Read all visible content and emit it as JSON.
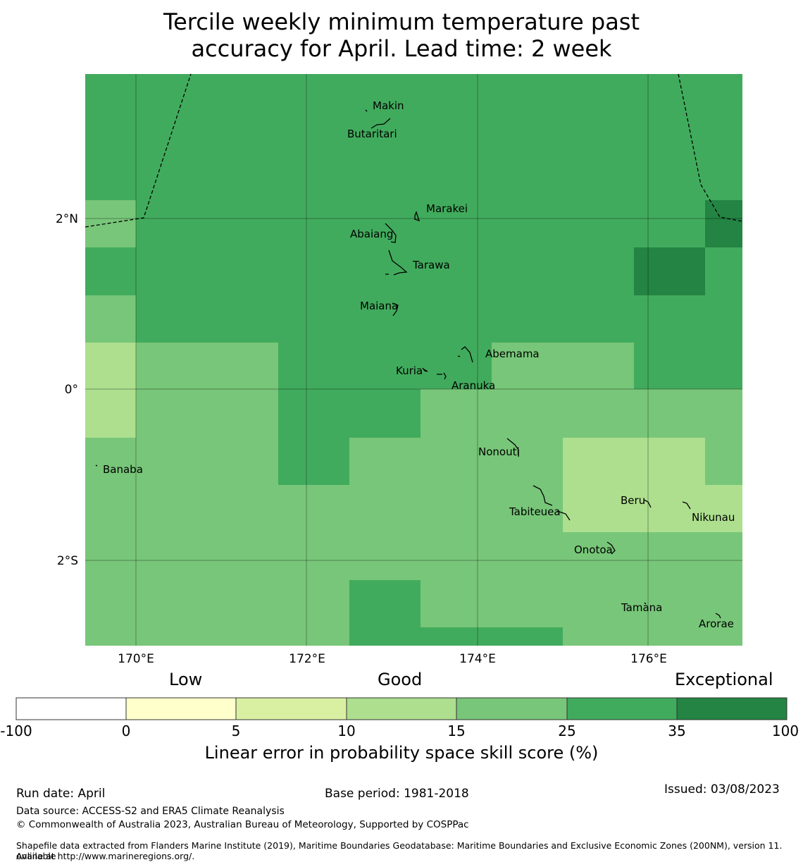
{
  "title_line1": "Tercile weekly minimum temperature past",
  "title_line2": "accuracy for April. Lead time: 2 week",
  "map": {
    "lon_range": [
      169.4,
      177.1
    ],
    "lat_range": [
      -3.0,
      3.7
    ],
    "x_ticks": [
      "170°E",
      "172°E",
      "174°E",
      "176°E"
    ],
    "y_ticks": [
      "2°N",
      "0°",
      "2°S"
    ],
    "colors": {
      "c10_15": "#addf8e",
      "c15_25": "#78c679",
      "c25_35": "#41ab5d",
      "c35_100": "#238443"
    },
    "places": [
      {
        "name": "Makin"
      },
      {
        "name": "Butaritari"
      },
      {
        "name": "Marakei"
      },
      {
        "name": "Abaiang"
      },
      {
        "name": "Tarawa"
      },
      {
        "name": "Maiana"
      },
      {
        "name": "Abemama"
      },
      {
        "name": "Kuria"
      },
      {
        "name": "Aranuka"
      },
      {
        "name": "Nonouti"
      },
      {
        "name": "Banaba"
      },
      {
        "name": "Beru"
      },
      {
        "name": "Tabiteuea"
      },
      {
        "name": "Nikunau"
      },
      {
        "name": "Onotoa"
      },
      {
        "name": "Tamana"
      },
      {
        "name": "Arorae"
      }
    ]
  },
  "colorbar": {
    "categories": {
      "low": "Low",
      "good": "Good",
      "exceptional": "Exceptional"
    },
    "boundaries": [
      "-100",
      "0",
      "5",
      "10",
      "15",
      "25",
      "35",
      "100"
    ],
    "colors": [
      "#ffffff",
      "#ffffcc",
      "#d9f0a3",
      "#addf8e",
      "#78c679",
      "#41ab5d",
      "#238443"
    ],
    "label": "Linear error in probability space skill score (%)"
  },
  "footer": {
    "run_date": "Run date: April",
    "base_period": "Base period: 1981-2018",
    "issued": "Issued: 03/08/2023",
    "data_source": "Data source: ACCESS-S2 and ERA5 Climate Reanalysis",
    "copyright": "© Commonwealth of Australia 2023, Australian Bureau of Meteorology, Supported by COSPPac",
    "shapefile_line1": "Shapefile data extracted from Flanders Marine Institute (2019), Maritime Boundaries Geodatabase: Maritime Boundaries and Exclusive Economic Zones (200NM), version 11. Available",
    "shapefile_line2": "online at http://www.marineregions.org/."
  }
}
